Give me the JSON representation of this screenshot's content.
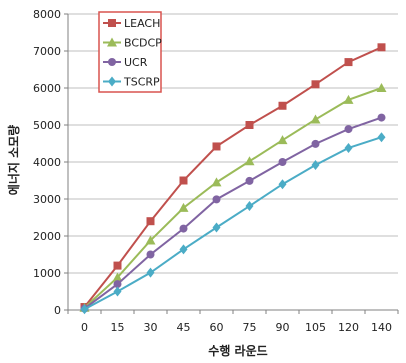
{
  "chart_data": {
    "type": "line",
    "xlabel": "수행 라운드",
    "ylabel": "에너지 소모량",
    "categories": [
      "0",
      "15",
      "30",
      "45",
      "60",
      "75",
      "90",
      "105",
      "120",
      "140"
    ],
    "ylim": [
      0,
      8000
    ],
    "yticks": [
      0,
      1000,
      2000,
      3000,
      4000,
      5000,
      6000,
      7000,
      8000
    ],
    "grid": "horizontal",
    "legend_position": "top-left",
    "series": [
      {
        "name": "LEACH",
        "color": "#c0504d",
        "marker": "square",
        "values": [
          80,
          1200,
          2400,
          3500,
          4420,
          5000,
          5520,
          6100,
          6700,
          7100
        ]
      },
      {
        "name": "BCDCP",
        "color": "#9bbb59",
        "marker": "triangle",
        "values": [
          60,
          880,
          1880,
          2760,
          3450,
          4020,
          4590,
          5150,
          5680,
          6000
        ]
      },
      {
        "name": "UCR",
        "color": "#8064a2",
        "marker": "circle",
        "values": [
          40,
          700,
          1500,
          2200,
          2990,
          3490,
          4000,
          4490,
          4890,
          5200
        ]
      },
      {
        "name": "TSCRP",
        "color": "#4bacc6",
        "marker": "diamond",
        "values": [
          20,
          500,
          1010,
          1640,
          2230,
          2810,
          3400,
          3920,
          4380,
          4670
        ]
      }
    ]
  }
}
